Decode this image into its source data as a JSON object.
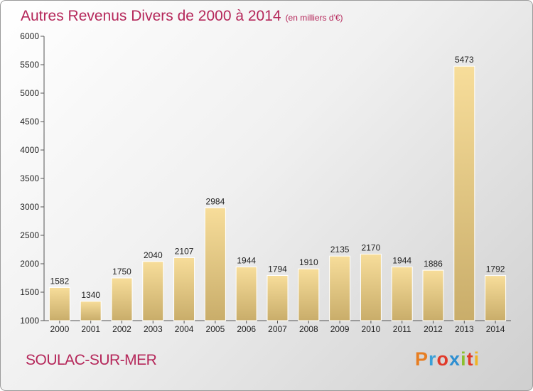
{
  "title": "Autres Revenus Divers de 2000 à 2014",
  "subtitle": "(en milliers d'€)",
  "commune": "SOULAC-SUR-MER",
  "logo": {
    "letters": [
      "P",
      "r",
      "o",
      "x",
      "i",
      "t",
      "i"
    ],
    "colors": [
      "#e77e22",
      "#3aa0d8",
      "#e13a2a",
      "#2e8fd1",
      "#8cbf2f",
      "#e13a2a",
      "#f0b323"
    ]
  },
  "colors": {
    "title": "#b5275a",
    "bar_light": "#f7dd9a",
    "bar_dark": "#c9ad6a"
  },
  "chart_data": {
    "type": "bar",
    "categories": [
      "2000",
      "2001",
      "2002",
      "2003",
      "2004",
      "2005",
      "2006",
      "2007",
      "2008",
      "2009",
      "2010",
      "2011",
      "2012",
      "2013",
      "2014"
    ],
    "values": [
      1582,
      1340,
      1750,
      2040,
      2107,
      2984,
      1944,
      1794,
      1910,
      2135,
      2170,
      1944,
      1886,
      5473,
      1792
    ],
    "ylim": [
      1000,
      6000
    ],
    "yticks": [
      1000,
      1500,
      2000,
      2500,
      3000,
      3500,
      4000,
      4500,
      5000,
      5500,
      6000
    ],
    "grid": false,
    "data_labels": true
  }
}
